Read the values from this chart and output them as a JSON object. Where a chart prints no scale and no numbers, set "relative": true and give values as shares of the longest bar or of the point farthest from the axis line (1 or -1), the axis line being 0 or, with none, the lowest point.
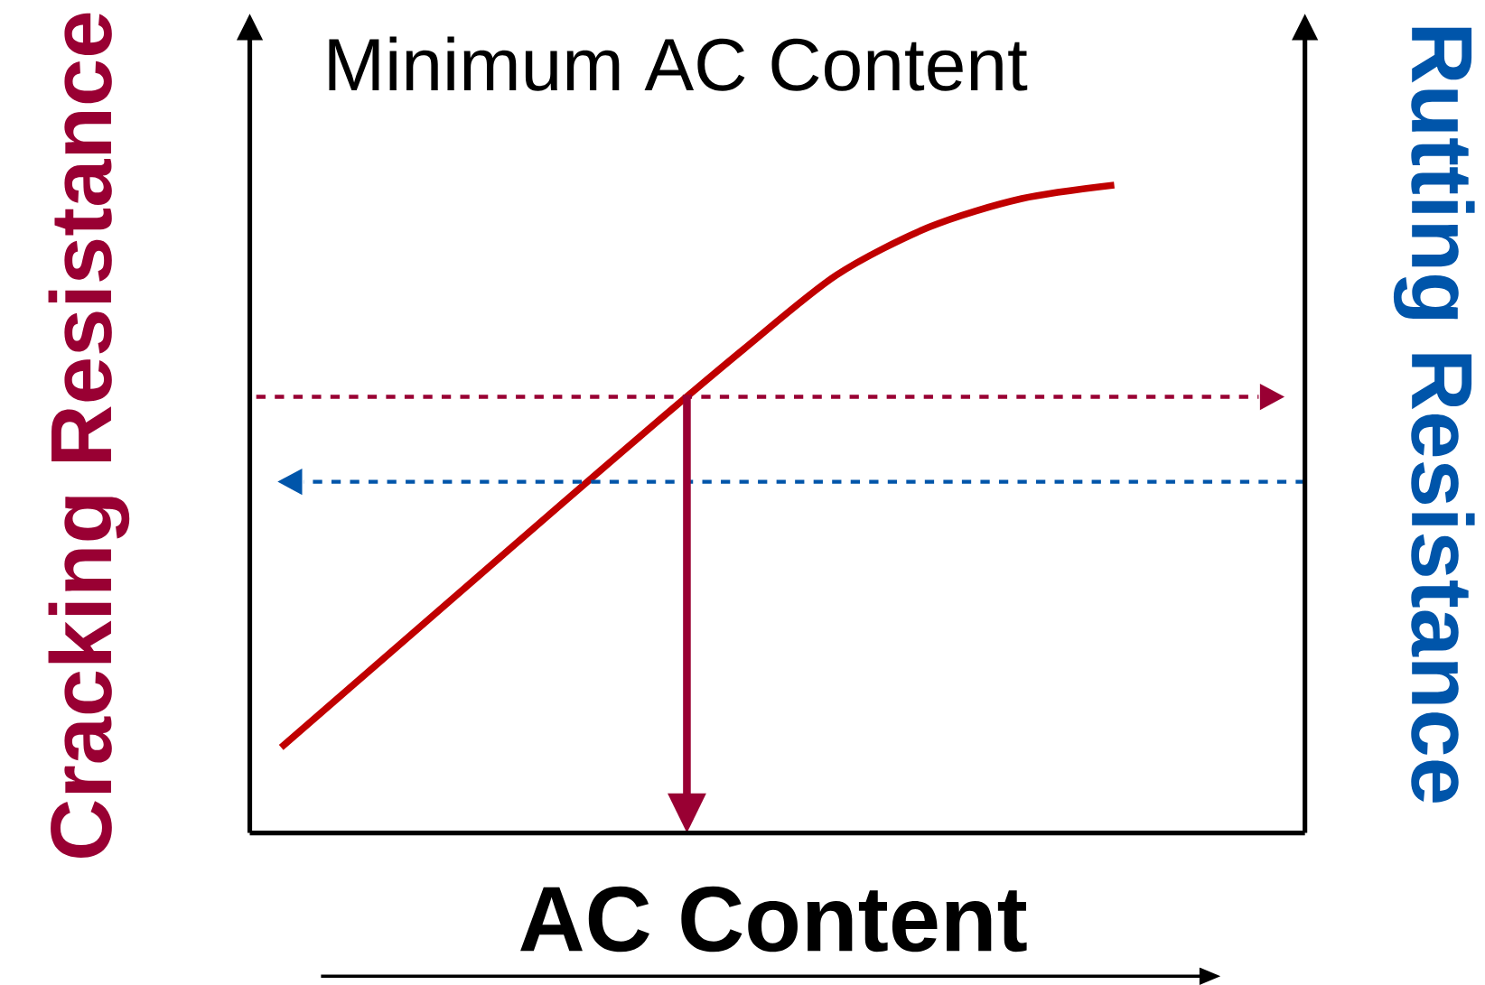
{
  "chart_data": {
    "type": "line",
    "relative": true,
    "title": "Minimum AC Content",
    "xlabel": "AC Content",
    "ylabel": "Cracking Resistance",
    "y2label": "Rutting Resistance",
    "categories": [
      null,
      null,
      null,
      null,
      null,
      null,
      null,
      null,
      null,
      null
    ],
    "series": [
      {
        "color": "#c00000",
        "values": [
          0.132,
          0.256,
          0.38,
          0.504,
          0.627,
          0.747,
          0.861,
          0.935,
          0.979,
          1.0
        ]
      }
    ],
    "ref_lines": [
      {
        "axis": "y",
        "value": 0.673,
        "color": "#990033",
        "line_style": "dashed"
      },
      {
        "axis": "y",
        "value": 0.542,
        "color": "#0055aa",
        "line_style": "dashed"
      }
    ],
    "marker": "none",
    "line_style": "solid"
  }
}
